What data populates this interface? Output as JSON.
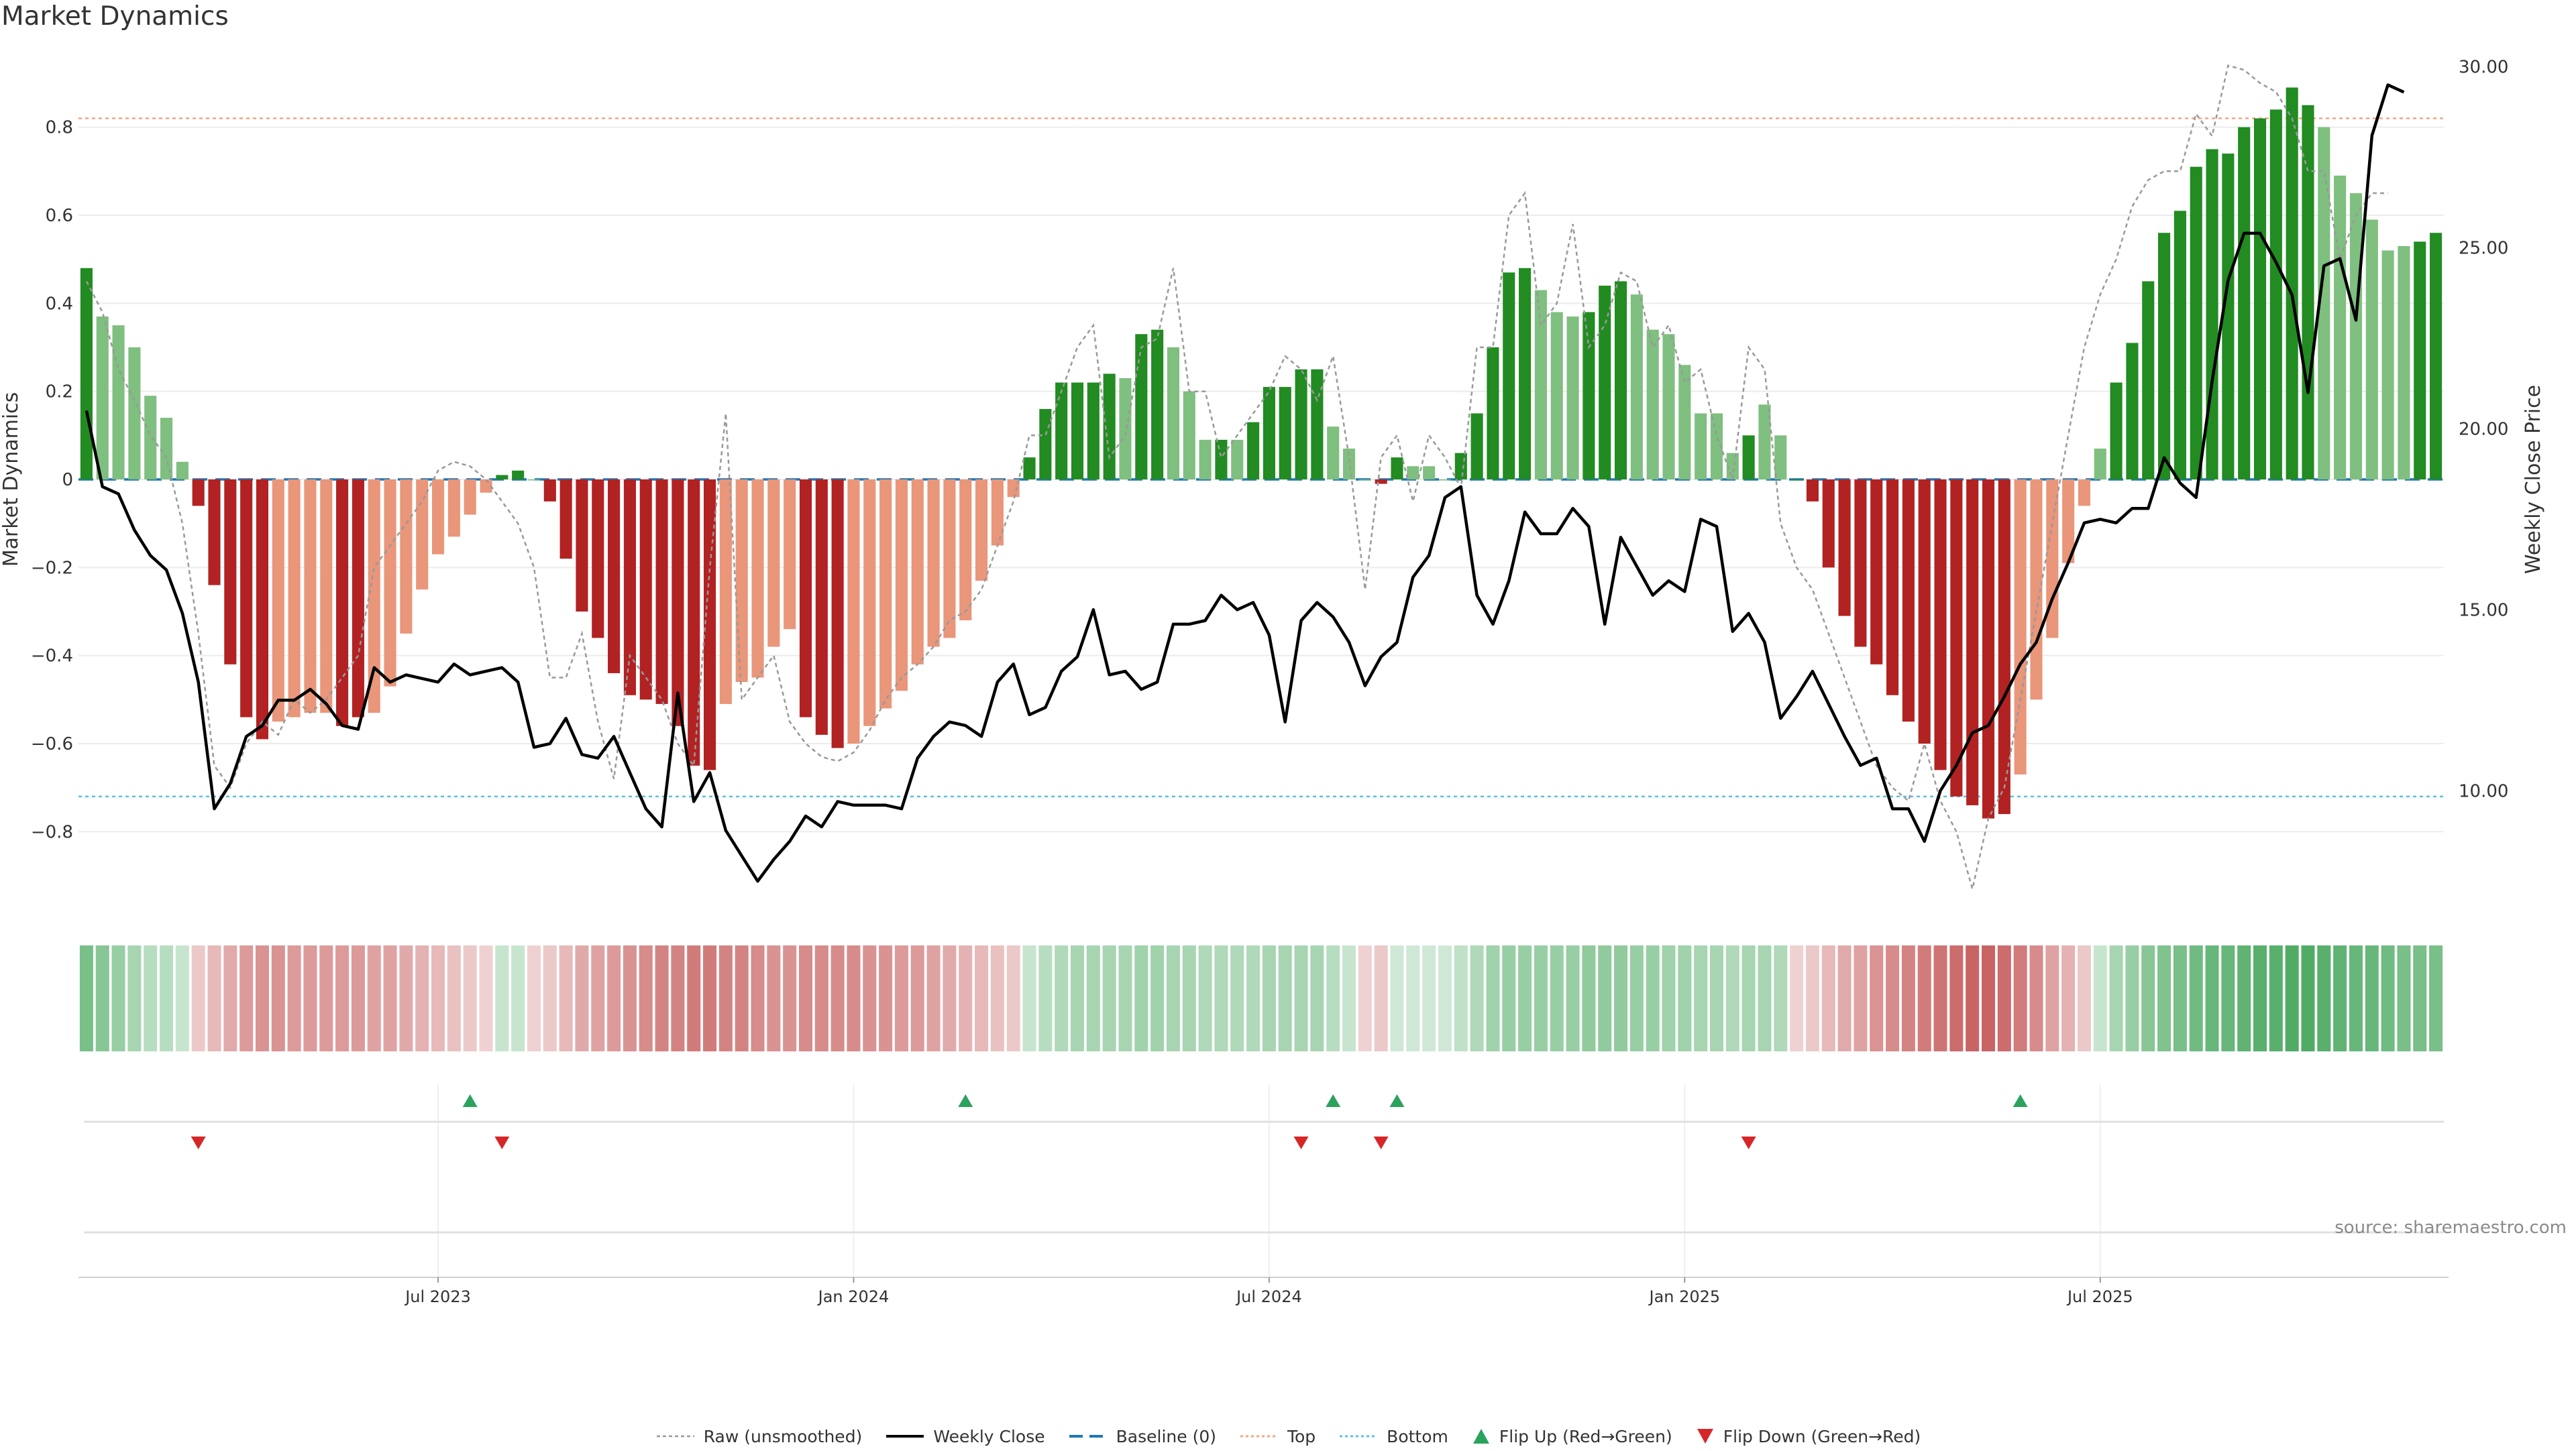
{
  "title": "Market Dynamics",
  "source": "source: sharemaestro.com",
  "colors": {
    "strong_green": "#228b22",
    "light_green": "#7fbf7f",
    "strong_red": "#b22222",
    "light_red": "#e9967a",
    "price": "#000000",
    "raw": "#999999",
    "baseline": "#1f77b4",
    "top": "#f4a582",
    "bottom": "#5bc0de",
    "flip_up": "#2ca25f",
    "flip_down": "#d62728"
  },
  "legend": [
    {
      "key": "raw",
      "label": "Raw (unsmoothed)"
    },
    {
      "key": "price",
      "label": "Weekly Close"
    },
    {
      "key": "baseline",
      "label": "Baseline (0)"
    },
    {
      "key": "top",
      "label": "Top"
    },
    {
      "key": "bottom",
      "label": "Bottom"
    },
    {
      "key": "flip_up",
      "label": "Flip Up (Red→Green)"
    },
    {
      "key": "flip_down",
      "label": "Flip Down (Green→Red)"
    }
  ],
  "chart_data": {
    "type": "bar",
    "title": "Market Dynamics",
    "ylabel": "Market Dynamics",
    "y2label": "Weekly Close Price",
    "ylim": [
      -0.97,
      0.97
    ],
    "y2lim": [
      6.8,
      30.4
    ],
    "yticks": [
      0.8,
      0.6,
      0.4,
      0.2,
      0,
      -0.2,
      -0.4,
      -0.6,
      -0.8
    ],
    "ytick_labels": [
      "0.8",
      "0.6",
      "0.4",
      "0.2",
      "0",
      "−0.2",
      "−0.4",
      "−0.6",
      "−0.8"
    ],
    "y2ticks": [
      30,
      25,
      20,
      15,
      10
    ],
    "y2tick_labels": [
      "30.00",
      "25.00",
      "20.00",
      "15.00",
      "10.00"
    ],
    "xtick_index": [
      22.5,
      48.5,
      74.5,
      100.5,
      126.5
    ],
    "xtick_labels": [
      "Jul 2023",
      "Jan 2024",
      "Jul 2024",
      "Jan 2025",
      "Jul 2025"
    ],
    "top": 0.82,
    "bottom": -0.72,
    "values": [
      0.48,
      0.37,
      0.35,
      0.3,
      0.19,
      0.14,
      0.04,
      -0.06,
      -0.24,
      -0.42,
      -0.54,
      -0.59,
      -0.55,
      -0.54,
      -0.53,
      -0.53,
      -0.56,
      -0.54,
      -0.53,
      -0.47,
      -0.35,
      -0.25,
      -0.17,
      -0.13,
      -0.08,
      -0.03,
      0.01,
      0.02,
      0.0,
      -0.05,
      -0.18,
      -0.3,
      -0.36,
      -0.44,
      -0.49,
      -0.5,
      -0.51,
      -0.56,
      -0.65,
      -0.66,
      -0.51,
      -0.46,
      -0.45,
      -0.38,
      -0.34,
      -0.54,
      -0.58,
      -0.61,
      -0.6,
      -0.56,
      -0.52,
      -0.48,
      -0.42,
      -0.38,
      -0.36,
      -0.32,
      -0.23,
      -0.15,
      -0.04,
      0.05,
      0.16,
      0.22,
      0.22,
      0.22,
      0.24,
      0.23,
      0.33,
      0.34,
      0.3,
      0.2,
      0.09,
      0.09,
      0.09,
      0.13,
      0.21,
      0.21,
      0.25,
      0.25,
      0.12,
      0.07,
      0.0,
      -0.01,
      0.05,
      0.03,
      0.03,
      0.0,
      0.06,
      0.15,
      0.3,
      0.47,
      0.48,
      0.43,
      0.38,
      0.37,
      0.38,
      0.44,
      0.45,
      0.42,
      0.34,
      0.33,
      0.26,
      0.15,
      0.15,
      0.06,
      0.1,
      0.17,
      0.1,
      0.0,
      -0.05,
      -0.2,
      -0.31,
      -0.38,
      -0.42,
      -0.49,
      -0.55,
      -0.6,
      -0.66,
      -0.72,
      -0.74,
      -0.77,
      -0.76,
      -0.67,
      -0.5,
      -0.36,
      -0.19,
      -0.06,
      0.07,
      0.22,
      0.31,
      0.45,
      0.56,
      0.61,
      0.71,
      0.75,
      0.74,
      0.8,
      0.82,
      0.84,
      0.89,
      0.85,
      0.8,
      0.69,
      0.65,
      0.59,
      0.52,
      0.53,
      0.54,
      0.56
    ],
    "bar_strength": [
      "s",
      "l",
      "l",
      "l",
      "l",
      "l",
      "l",
      "s",
      "s",
      "s",
      "s",
      "s",
      "l",
      "l",
      "l",
      "l",
      "s",
      "s",
      "l",
      "l",
      "l",
      "l",
      "l",
      "l",
      "l",
      "l",
      "s",
      "s",
      "l",
      "s",
      "s",
      "s",
      "s",
      "s",
      "s",
      "s",
      "s",
      "s",
      "s",
      "s",
      "l",
      "l",
      "l",
      "l",
      "l",
      "s",
      "s",
      "s",
      "l",
      "l",
      "l",
      "l",
      "l",
      "l",
      "l",
      "l",
      "l",
      "l",
      "l",
      "s",
      "s",
      "s",
      "s",
      "s",
      "s",
      "l",
      "s",
      "s",
      "l",
      "l",
      "l",
      "s",
      "l",
      "s",
      "s",
      "s",
      "s",
      "s",
      "l",
      "l",
      "l",
      "s",
      "s",
      "l",
      "l",
      "l",
      "s",
      "s",
      "s",
      "s",
      "s",
      "l",
      "l",
      "l",
      "s",
      "s",
      "s",
      "l",
      "l",
      "l",
      "l",
      "l",
      "l",
      "l",
      "s",
      "l",
      "l",
      "s",
      "s",
      "s",
      "s",
      "s",
      "s",
      "s",
      "s",
      "s",
      "s",
      "s",
      "s",
      "s",
      "s",
      "l",
      "l",
      "l",
      "l",
      "l",
      "l",
      "s",
      "s",
      "s",
      "s",
      "s",
      "s",
      "s",
      "s",
      "s",
      "s",
      "s",
      "s",
      "s",
      "l",
      "l",
      "l",
      "l",
      "l",
      "l",
      "s",
      "s"
    ],
    "raw": [
      0.45,
      0.38,
      0.25,
      0.18,
      0.1,
      0.05,
      -0.1,
      -0.35,
      -0.65,
      -0.7,
      -0.6,
      -0.55,
      -0.58,
      -0.5,
      -0.53,
      -0.5,
      -0.45,
      -0.4,
      -0.2,
      -0.15,
      -0.1,
      -0.05,
      0.02,
      0.04,
      0.03,
      0.0,
      -0.05,
      -0.1,
      -0.2,
      -0.45,
      -0.45,
      -0.35,
      -0.55,
      -0.68,
      -0.4,
      -0.45,
      -0.5,
      -0.6,
      -0.65,
      -0.2,
      0.15,
      -0.5,
      -0.45,
      -0.4,
      -0.55,
      -0.6,
      -0.63,
      -0.64,
      -0.62,
      -0.57,
      -0.5,
      -0.45,
      -0.42,
      -0.38,
      -0.32,
      -0.3,
      -0.25,
      -0.15,
      -0.05,
      0.1,
      0.1,
      0.2,
      0.3,
      0.35,
      0.05,
      0.1,
      0.3,
      0.32,
      0.48,
      0.2,
      0.2,
      0.05,
      0.1,
      0.15,
      0.2,
      0.28,
      0.25,
      0.18,
      0.28,
      0.05,
      -0.25,
      0.05,
      0.1,
      -0.05,
      0.1,
      0.05,
      -0.02,
      0.3,
      0.3,
      0.6,
      0.65,
      0.35,
      0.4,
      0.58,
      0.3,
      0.35,
      0.47,
      0.45,
      0.3,
      0.35,
      0.22,
      0.25,
      0.1,
      0.0,
      0.3,
      0.25,
      -0.1,
      -0.2,
      -0.25,
      -0.35,
      -0.45,
      -0.55,
      -0.65,
      -0.7,
      -0.73,
      -0.6,
      -0.73,
      -0.8,
      -0.93,
      -0.77,
      -0.7,
      -0.5,
      -0.3,
      -0.1,
      0.1,
      0.3,
      0.42,
      0.5,
      0.62,
      0.68,
      0.7,
      0.7,
      0.83,
      0.78,
      0.94,
      0.93,
      0.9,
      0.88,
      0.82,
      0.7,
      0.7,
      0.5,
      0.6,
      0.65,
      0.65
    ],
    "price": [
      20.5,
      18.4,
      18.2,
      17.2,
      16.5,
      16.1,
      14.9,
      13.0,
      9.5,
      10.2,
      11.5,
      11.8,
      12.5,
      12.5,
      12.8,
      12.4,
      11.8,
      11.7,
      13.4,
      13.0,
      13.2,
      13.1,
      13.0,
      13.5,
      13.2,
      13.3,
      13.4,
      13.0,
      11.2,
      11.3,
      12.0,
      11.0,
      10.9,
      11.5,
      10.5,
      9.5,
      9.0,
      12.7,
      9.7,
      10.5,
      8.9,
      8.2,
      7.5,
      8.1,
      8.6,
      9.3,
      9.0,
      9.7,
      9.6,
      9.6,
      9.6,
      9.5,
      10.9,
      11.5,
      11.9,
      11.8,
      11.5,
      13.0,
      13.5,
      12.1,
      12.3,
      13.3,
      13.7,
      15.0,
      13.2,
      13.3,
      12.8,
      13.0,
      14.6,
      14.6,
      14.7,
      15.4,
      15.0,
      15.2,
      14.3,
      11.9,
      14.7,
      15.2,
      14.8,
      14.1,
      12.9,
      13.7,
      14.1,
      15.9,
      16.5,
      18.1,
      18.4,
      15.4,
      14.6,
      15.8,
      17.7,
      17.1,
      17.1,
      17.8,
      17.3,
      14.6,
      17.0,
      16.2,
      15.4,
      15.8,
      15.5,
      17.5,
      17.3,
      14.4,
      14.9,
      14.1,
      12.0,
      12.6,
      13.3,
      12.4,
      11.5,
      10.7,
      10.9,
      9.5,
      9.5,
      8.6,
      10.0,
      10.7,
      11.6,
      11.8,
      12.6,
      13.5,
      14.1,
      15.3,
      16.3,
      17.4,
      17.5,
      17.4,
      17.8,
      17.8,
      19.2,
      18.5,
      18.1,
      21.3,
      24.1,
      25.4,
      25.4,
      24.6,
      23.7,
      21.0,
      24.5,
      24.7,
      23.0,
      28.1,
      29.5,
      29.3
    ],
    "tone": [
      0.6,
      0.5,
      0.4,
      0.3,
      0.2,
      0.2,
      0.1,
      -0.1,
      -0.2,
      -0.3,
      -0.4,
      -0.45,
      -0.45,
      -0.4,
      -0.4,
      -0.4,
      -0.4,
      -0.4,
      -0.35,
      -0.35,
      -0.3,
      -0.25,
      -0.2,
      -0.15,
      -0.1,
      -0.05,
      0.1,
      0.1,
      -0.05,
      -0.1,
      -0.2,
      -0.3,
      -0.35,
      -0.4,
      -0.45,
      -0.5,
      -0.55,
      -0.55,
      -0.6,
      -0.6,
      -0.55,
      -0.55,
      -0.5,
      -0.45,
      -0.45,
      -0.5,
      -0.5,
      -0.5,
      -0.5,
      -0.45,
      -0.45,
      -0.4,
      -0.4,
      -0.35,
      -0.3,
      -0.25,
      -0.2,
      -0.15,
      -0.1,
      0.1,
      0.2,
      0.25,
      0.3,
      0.3,
      0.3,
      0.3,
      0.35,
      0.35,
      0.3,
      0.3,
      0.25,
      0.25,
      0.25,
      0.25,
      0.3,
      0.3,
      0.3,
      0.3,
      0.2,
      0.1,
      -0.05,
      -0.1,
      0.05,
      0.05,
      0.05,
      0.05,
      0.15,
      0.25,
      0.35,
      0.4,
      0.4,
      0.4,
      0.4,
      0.4,
      0.45,
      0.45,
      0.45,
      0.4,
      0.4,
      0.35,
      0.35,
      0.3,
      0.3,
      0.25,
      0.3,
      0.3,
      0.25,
      -0.05,
      -0.1,
      -0.2,
      -0.3,
      -0.35,
      -0.45,
      -0.5,
      -0.55,
      -0.6,
      -0.65,
      -0.7,
      -0.75,
      -0.75,
      -0.7,
      -0.6,
      -0.5,
      -0.35,
      -0.25,
      -0.1,
      0.1,
      0.3,
      0.4,
      0.5,
      0.55,
      0.6,
      0.65,
      0.7,
      0.7,
      0.75,
      0.8,
      0.8,
      0.85,
      0.85,
      0.8,
      0.75,
      0.7,
      0.7,
      0.65,
      0.6,
      0.6,
      0.6
    ],
    "flips_up": [
      24,
      55,
      78,
      82,
      121
    ],
    "flips_down": [
      7,
      26,
      76,
      81,
      104
    ]
  }
}
